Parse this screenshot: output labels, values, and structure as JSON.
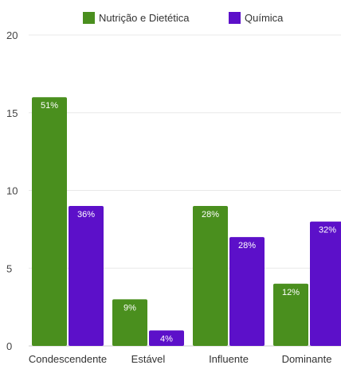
{
  "chart_data": {
    "type": "bar",
    "categories": [
      "Condescendente",
      "Estável",
      "Influente",
      "Dominante"
    ],
    "series": [
      {
        "name": "Nutrição e Dietética",
        "color": "#4a8f1e",
        "values": [
          16,
          3,
          9,
          4
        ],
        "labels": [
          "51%",
          "9%",
          "28%",
          "12%"
        ]
      },
      {
        "name": "Química",
        "color": "#5c10c9",
        "values": [
          9,
          1,
          7,
          8
        ],
        "labels": [
          "36%",
          "4%",
          "28%",
          "32%"
        ]
      }
    ],
    "yticks": [
      "0",
      "5",
      "10",
      "15",
      "20"
    ],
    "ylim": [
      0,
      20
    ],
    "grid": true,
    "legend_position": "top"
  }
}
